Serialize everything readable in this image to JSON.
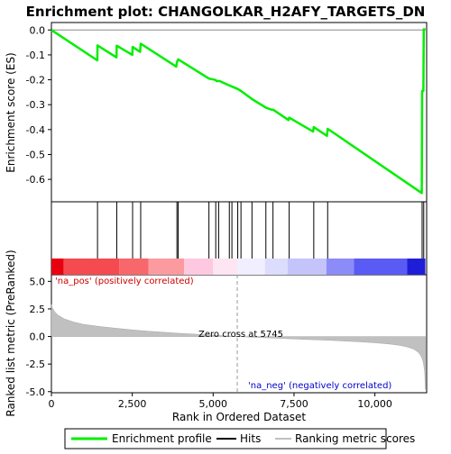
{
  "chart_data": {
    "type": "line",
    "title": "Enrichment plot: CHANGOLKAR_H2AFY_TARGETS_DN",
    "xlabel": "Rank in Ordered Dataset",
    "x_ticks": [
      0,
      2500,
      5000,
      7500,
      10000
    ],
    "x_tick_labels": [
      "0",
      "2,500",
      "5,000",
      "7,500",
      "10,000"
    ],
    "xlim": [
      0,
      11600
    ],
    "panels": {
      "enrichment": {
        "ylabel": "Enrichment score (ES)",
        "ylim": [
          -0.69,
          0.03
        ],
        "y_ticks": [
          0.0,
          -0.1,
          -0.2,
          -0.3,
          -0.4,
          -0.5,
          -0.6
        ],
        "y_tick_labels": [
          "0.0",
          "-0.1",
          "-0.2",
          "-0.3",
          "-0.4",
          "-0.5",
          "-0.6"
        ],
        "series": [
          {
            "name": "Enrichment profile",
            "color": "#00ee00",
            "points": [
              [
                0,
                0.0
              ],
              [
                1420,
                -0.122
              ],
              [
                1425,
                -0.062
              ],
              [
                2010,
                -0.11
              ],
              [
                2020,
                -0.063
              ],
              [
                2500,
                -0.1
              ],
              [
                2510,
                -0.068
              ],
              [
                2740,
                -0.088
              ],
              [
                2760,
                -0.055
              ],
              [
                3860,
                -0.147
              ],
              [
                3880,
                -0.13
              ],
              [
                3920,
                -0.118
              ],
              [
                4870,
                -0.195
              ],
              [
                5080,
                -0.201
              ],
              [
                5100,
                -0.205
              ],
              [
                5200,
                -0.205
              ],
              [
                5500,
                -0.223
              ],
              [
                5600,
                -0.228
              ],
              [
                5760,
                -0.237
              ],
              [
                5860,
                -0.245
              ],
              [
                6200,
                -0.277
              ],
              [
                6630,
                -0.312
              ],
              [
                6800,
                -0.32
              ],
              [
                6850,
                -0.32
              ],
              [
                7330,
                -0.362
              ],
              [
                7350,
                -0.352
              ],
              [
                8090,
                -0.408
              ],
              [
                8110,
                -0.39
              ],
              [
                8520,
                -0.425
              ],
              [
                8540,
                -0.397
              ],
              [
                11450,
                -0.655
              ],
              [
                11460,
                -0.245
              ],
              [
                11500,
                -0.245
              ],
              [
                11510,
                0.003
              ],
              [
                11560,
                0.003
              ]
            ]
          }
        ]
      },
      "hits": {
        "name": "Hits",
        "positions": [
          1425,
          2020,
          2510,
          2760,
          3880,
          3920,
          4870,
          5080,
          5170,
          5500,
          5580,
          5760,
          5860,
          6200,
          6630,
          6850,
          7350,
          8110,
          8540,
          11460,
          11510
        ]
      },
      "rank_gradient": {
        "segments": [
          {
            "from": 0,
            "to": 380,
            "color": "#e8000f"
          },
          {
            "from": 380,
            "to": 2100,
            "color": "#f54a50"
          },
          {
            "from": 2100,
            "to": 3000,
            "color": "#f7676c"
          },
          {
            "from": 3000,
            "to": 4100,
            "color": "#fb9ba0"
          },
          {
            "from": 4100,
            "to": 5000,
            "color": "#fdc8e0"
          },
          {
            "from": 5000,
            "to": 5745,
            "color": "#fde6f2"
          },
          {
            "from": 5745,
            "to": 6600,
            "color": "#f0eeff"
          },
          {
            "from": 6600,
            "to": 7300,
            "color": "#dcdcfd"
          },
          {
            "from": 7300,
            "to": 8500,
            "color": "#c4c4fb"
          },
          {
            "from": 8500,
            "to": 9350,
            "color": "#8c8cf8"
          },
          {
            "from": 9350,
            "to": 11000,
            "color": "#5a5af5"
          },
          {
            "from": 11000,
            "to": 11560,
            "color": "#1e1ed8"
          }
        ]
      },
      "ranked_metric": {
        "name": "Ranking metric scores",
        "ylabel": "Ranked list metric (PreRanked)",
        "ylim": [
          -5.1,
          5.6
        ],
        "y_ticks": [
          5.0,
          2.5,
          0.0,
          -2.5,
          -5.0
        ],
        "y_tick_labels": [
          "5.0",
          "2.5",
          "0.0",
          "-2.5",
          "-5.0"
        ],
        "color": "#c0c0c0",
        "points": [
          [
            0,
            2.9
          ],
          [
            30,
            2.6
          ],
          [
            100,
            2.25
          ],
          [
            200,
            1.95
          ],
          [
            400,
            1.6
          ],
          [
            700,
            1.3
          ],
          [
            1000,
            1.1
          ],
          [
            1500,
            0.9
          ],
          [
            2000,
            0.75
          ],
          [
            2500,
            0.6
          ],
          [
            3000,
            0.48
          ],
          [
            3500,
            0.38
          ],
          [
            4000,
            0.28
          ],
          [
            4500,
            0.2
          ],
          [
            5000,
            0.12
          ],
          [
            5745,
            0.0
          ],
          [
            6500,
            -0.1
          ],
          [
            7000,
            -0.16
          ],
          [
            7500,
            -0.22
          ],
          [
            8000,
            -0.28
          ],
          [
            8500,
            -0.33
          ],
          [
            9000,
            -0.4
          ],
          [
            9500,
            -0.48
          ],
          [
            10000,
            -0.57
          ],
          [
            10500,
            -0.7
          ],
          [
            10800,
            -0.82
          ],
          [
            11000,
            -0.95
          ],
          [
            11200,
            -1.15
          ],
          [
            11350,
            -1.45
          ],
          [
            11450,
            -1.9
          ],
          [
            11500,
            -2.4
          ],
          [
            11540,
            -3.2
          ],
          [
            11560,
            -4.8
          ]
        ],
        "zero_cross": 5745,
        "annotations": {
          "zero_cross": "Zero cross at 5745",
          "pos": "'na_pos' (positively correlated)",
          "neg": "'na_neg' (negatively correlated)"
        }
      }
    },
    "legend": {
      "placement": "bottom",
      "items": [
        {
          "label": "Enrichment profile",
          "color": "#00ee00"
        },
        {
          "label": "Hits",
          "color": "#000000"
        },
        {
          "label": "Ranking metric scores",
          "color": "#c0c0c0"
        }
      ]
    }
  }
}
